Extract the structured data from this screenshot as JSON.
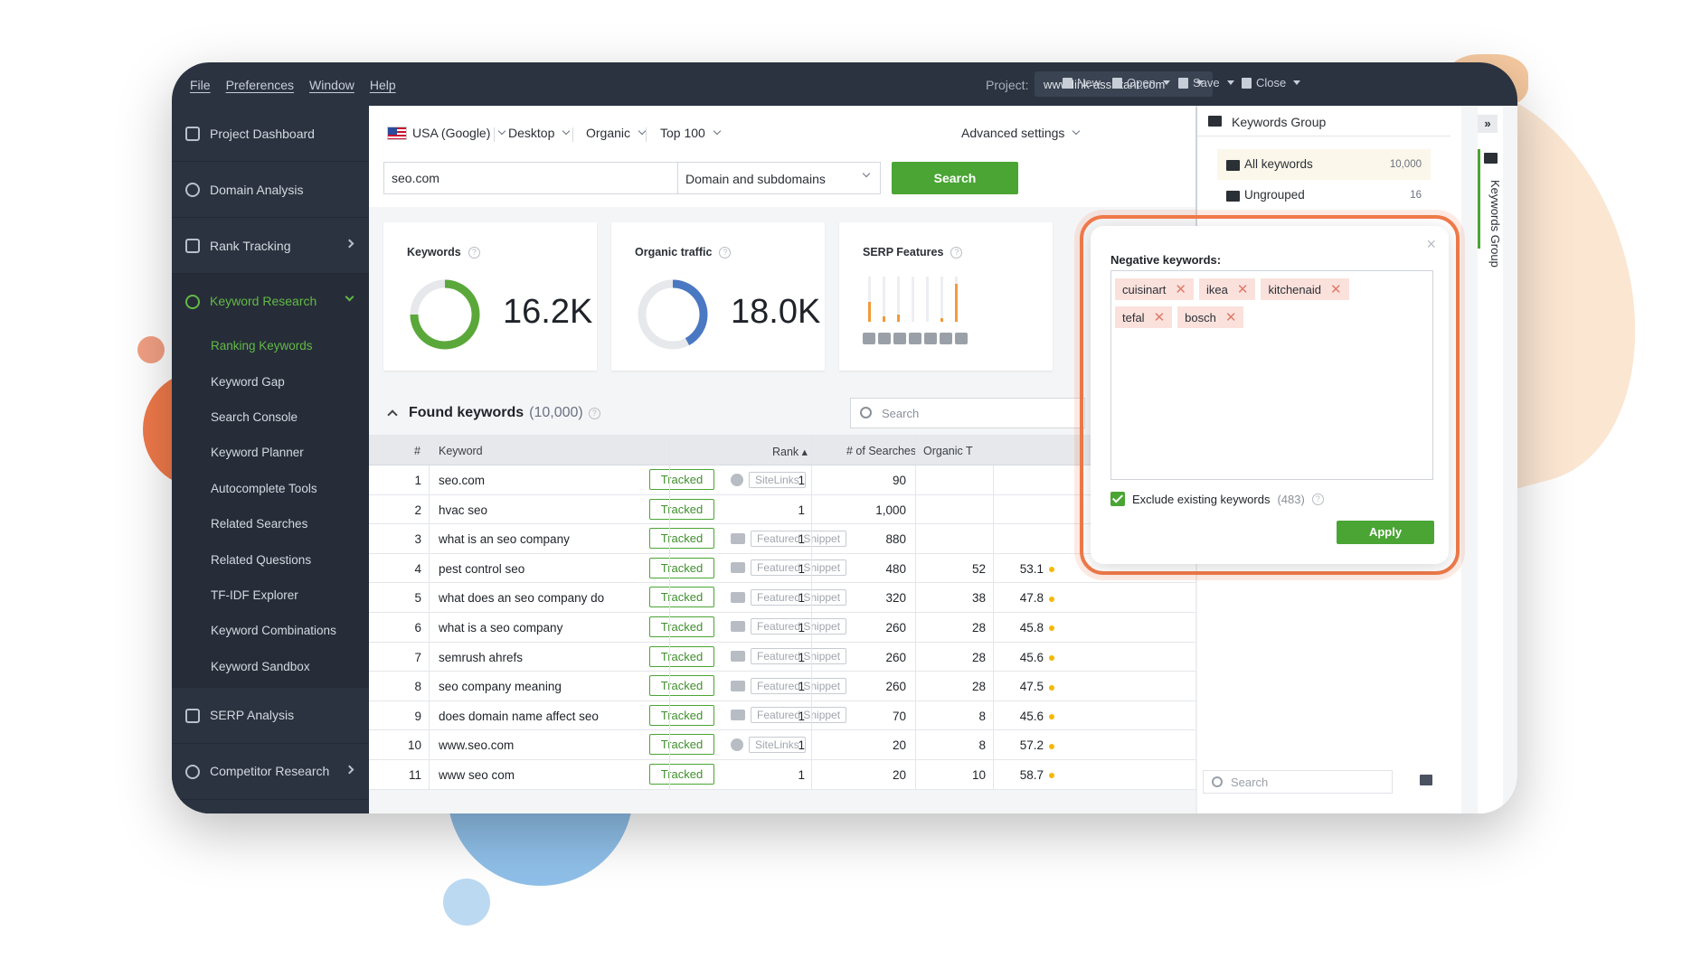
{
  "menu": {
    "items": [
      "File",
      "Preferences",
      "Window",
      "Help"
    ],
    "project_label": "Project:",
    "project_value": "www.link-assistant.com",
    "new_label": "New",
    "open_label": "Open",
    "save_label": "Save",
    "close_label": "Close"
  },
  "sidebar": {
    "items": [
      {
        "label": "Project Dashboard",
        "icon": "dashboard-icon"
      },
      {
        "label": "Domain Analysis",
        "icon": "globe-icon"
      },
      {
        "label": "Rank Tracking",
        "icon": "chart-icon"
      },
      {
        "label": "Keyword Research",
        "icon": "search-icon"
      }
    ],
    "submenu": [
      "Ranking Keywords",
      "Keyword Gap",
      "Search Console",
      "Keyword Planner",
      "Autocomplete Tools",
      "Related Searches",
      "Related Questions",
      "TF-IDF Explorer",
      "Keyword Combinations",
      "Keyword Sandbox"
    ],
    "bottom_items": [
      {
        "label": "SERP Analysis",
        "icon": "bar-chart-icon"
      },
      {
        "label": "Competitor Research",
        "icon": "user-icon"
      }
    ]
  },
  "filters": {
    "country": "USA (Google)",
    "device": "Desktop",
    "type": "Organic",
    "top": "Top 100",
    "advanced": "Advanced settings",
    "query": "seo.com",
    "scope": "Domain and subdomains",
    "search_label": "Search"
  },
  "cards": {
    "keywords_title": "Keywords",
    "keywords_value": "16.2K",
    "traffic_title": "Organic traffic",
    "traffic_value": "18.0K",
    "serp_title": "SERP Features"
  },
  "found": {
    "title": "Found keywords",
    "count": "(10,000)",
    "search_placeholder": "Search"
  },
  "table": {
    "headers": {
      "num": "#",
      "keyword": "Keyword",
      "rank": "Rank ▴",
      "searches": "# of Searches",
      "organic": "Organic T"
    },
    "tracked_label": "Tracked",
    "rows": [
      {
        "num": "1",
        "keyword": "seo.com",
        "feature": "SiteLinks",
        "rank": "1",
        "searches": "90",
        "organic": "",
        "kd": ""
      },
      {
        "num": "2",
        "keyword": "hvac seo",
        "feature": "",
        "rank": "1",
        "searches": "1,000",
        "organic": "",
        "kd": ""
      },
      {
        "num": "3",
        "keyword": "what is an seo company",
        "feature": "Featured Snippet",
        "rank": "1",
        "searches": "880",
        "organic": "",
        "kd": ""
      },
      {
        "num": "4",
        "keyword": "pest control seo",
        "feature": "Featured Snippet",
        "rank": "1",
        "searches": "480",
        "organic": "52",
        "kd": "53.1"
      },
      {
        "num": "5",
        "keyword": "what does an seo company do",
        "feature": "Featured Snippet",
        "rank": "1",
        "searches": "320",
        "organic": "38",
        "kd": "47.8"
      },
      {
        "num": "6",
        "keyword": "what is a seo company",
        "feature": "Featured Snippet",
        "rank": "1",
        "searches": "260",
        "organic": "28",
        "kd": "45.8"
      },
      {
        "num": "7",
        "keyword": "semrush ahrefs",
        "feature": "Featured Snippet",
        "rank": "1",
        "searches": "260",
        "organic": "28",
        "kd": "45.6"
      },
      {
        "num": "8",
        "keyword": "seo company meaning",
        "feature": "Featured Snippet",
        "rank": "1",
        "searches": "260",
        "organic": "28",
        "kd": "47.5"
      },
      {
        "num": "9",
        "keyword": "does domain name affect seo",
        "feature": "Featured Snippet",
        "rank": "1",
        "searches": "70",
        "organic": "8",
        "kd": "45.6"
      },
      {
        "num": "10",
        "keyword": "www.seo.com",
        "feature": "SiteLinks",
        "rank": "1",
        "searches": "20",
        "organic": "8",
        "kd": "57.2"
      },
      {
        "num": "11",
        "keyword": "www seo com",
        "feature": "",
        "rank": "1",
        "searches": "20",
        "organic": "10",
        "kd": "58.7"
      }
    ]
  },
  "right_panel": {
    "title": "Keywords Group",
    "groups": [
      {
        "label": "All keywords",
        "count": "10,000"
      },
      {
        "label": "Ungrouped",
        "count": "16"
      }
    ],
    "vertical_label": "Keywords Group",
    "search_placeholder": "Search",
    "expand_label": "»"
  },
  "popup": {
    "title": "Negative keywords:",
    "chips": [
      "cuisinart",
      "ikea",
      "kitchenaid",
      "tefal",
      "bosch"
    ],
    "exclude_label": "Exclude existing keywords",
    "exclude_count": "(483)",
    "apply_label": "Apply",
    "close": "×"
  },
  "colors": {
    "accent": "#4aa534",
    "highlight": "#f07a4a",
    "sidebar": "#2b3340"
  }
}
